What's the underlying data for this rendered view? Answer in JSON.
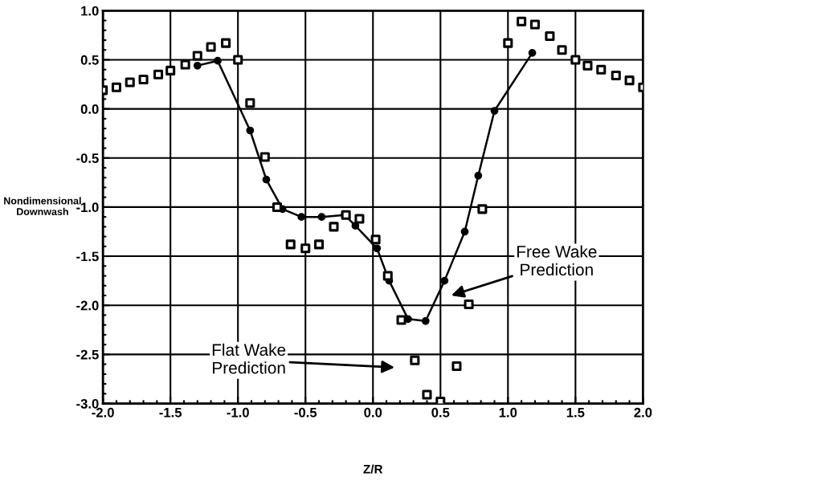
{
  "chart_data": {
    "type": "scatter",
    "xlabel": "Z/R",
    "ylabel": "Nondimensional\nDownwash",
    "series": [
      {
        "type": "line",
        "color": "#000000",
        "marker": "circle",
        "line_style": "solid",
        "x": [
          -1.3,
          -1.15,
          -0.91,
          -0.79,
          -0.67,
          -0.53,
          -0.38,
          -0.21,
          -0.13,
          0.03,
          0.12,
          0.26,
          0.39,
          0.53,
          0.68,
          0.78,
          0.9,
          1.18
        ],
        "values": [
          0.44,
          0.49,
          -0.22,
          -0.72,
          -1.02,
          -1.1,
          -1.1,
          -1.08,
          -1.19,
          -1.42,
          -1.75,
          -2.14,
          -2.16,
          -1.75,
          -1.25,
          -0.68,
          -0.02,
          0.57
        ]
      },
      {
        "color": "#000000",
        "marker": "square",
        "x": [
          -2.0,
          -1.9,
          -1.8,
          -1.7,
          -1.59,
          -1.5,
          -1.39,
          -1.3,
          -1.2,
          -1.09,
          -1.0,
          -0.91,
          -0.8,
          -0.71,
          -0.61,
          -0.5,
          -0.4,
          -0.29,
          -0.2,
          -0.1,
          0.02,
          0.11,
          0.21,
          0.31,
          0.4,
          0.5,
          0.62,
          0.71,
          0.81,
          1.0,
          1.1,
          1.2,
          1.31,
          1.4,
          1.5,
          1.59,
          1.69,
          1.8,
          1.9,
          2.0
        ],
        "values": [
          0.19,
          0.22,
          0.27,
          0.3,
          0.35,
          0.39,
          0.45,
          0.54,
          0.63,
          0.67,
          0.5,
          0.06,
          -0.49,
          -1.0,
          -1.38,
          -1.42,
          -1.38,
          -1.2,
          -1.08,
          -1.12,
          -1.33,
          -1.7,
          -2.15,
          -2.56,
          -2.91,
          -2.98,
          -2.62,
          -1.99,
          -1.02,
          0.67,
          0.89,
          0.86,
          0.74,
          0.6,
          0.5,
          0.44,
          0.4,
          0.34,
          0.29,
          0.22
        ]
      }
    ],
    "annotations": [
      "Free Wake\nPrediction",
      "Flat Wake\nPrediction"
    ],
    "xlim": [
      -2.0,
      2.0
    ],
    "ylim": [
      -3.0,
      1.0
    ],
    "xticks": [
      {
        "value": -2.0,
        "label": "-2.0"
      },
      {
        "value": -1.5,
        "label": "-1.5"
      },
      {
        "value": -1.0,
        "label": "-1.0"
      },
      {
        "value": -0.5,
        "label": "-0.5"
      },
      {
        "value": 0.0,
        "label": "0.0"
      },
      {
        "value": 0.5,
        "label": "0.5"
      },
      {
        "value": 1.0,
        "label": "1.0"
      },
      {
        "value": 1.5,
        "label": "1.5"
      },
      {
        "value": 2.0,
        "label": "2.0"
      }
    ],
    "yticks": [
      {
        "value": -3.0,
        "label": "-3.0"
      },
      {
        "value": -2.5,
        "label": "-2.5"
      },
      {
        "value": -2.0,
        "label": "-2.0"
      },
      {
        "value": -1.5,
        "label": "-1.5"
      },
      {
        "value": -1.0,
        "label": "-1.0"
      },
      {
        "value": -0.5,
        "label": "-0.5"
      },
      {
        "value": 0.0,
        "label": "0.0"
      },
      {
        "value": 0.5,
        "label": "0.5"
      },
      {
        "value": 1.0,
        "label": "1.0"
      }
    ],
    "grid": true,
    "legend": false
  }
}
